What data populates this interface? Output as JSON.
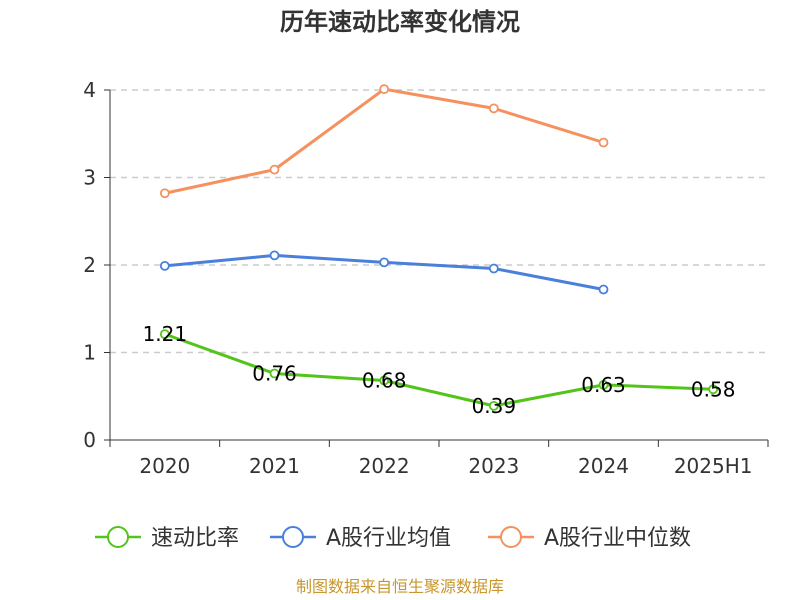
{
  "chart_data": {
    "type": "line",
    "title": "历年速动比率变化情况",
    "categories": [
      "2020",
      "2021",
      "2022",
      "2023",
      "2024",
      "2025H1"
    ],
    "ylim": [
      0,
      4
    ],
    "yticks": [
      "0",
      "1",
      "2",
      "3",
      "4"
    ],
    "grid": true,
    "legend_position": "bottom",
    "series": [
      {
        "name": "速动比率",
        "color": "#52c41a",
        "values": [
          1.21,
          0.76,
          0.68,
          0.39,
          0.63,
          0.58
        ],
        "labels": [
          "1.21",
          "0.76",
          "0.68",
          "0.39",
          "0.63",
          "0.58"
        ]
      },
      {
        "name": "A股行业均值",
        "color": "#4a7fdc",
        "values": [
          1.99,
          2.11,
          2.03,
          1.96,
          1.72,
          null
        ]
      },
      {
        "name": "A股行业中位数",
        "color": "#f5915e",
        "values": [
          2.82,
          3.09,
          4.01,
          3.79,
          3.4,
          null
        ]
      }
    ]
  },
  "source": {
    "text": "制图数据来自恒生聚源数据库",
    "color": "#c8962e"
  }
}
